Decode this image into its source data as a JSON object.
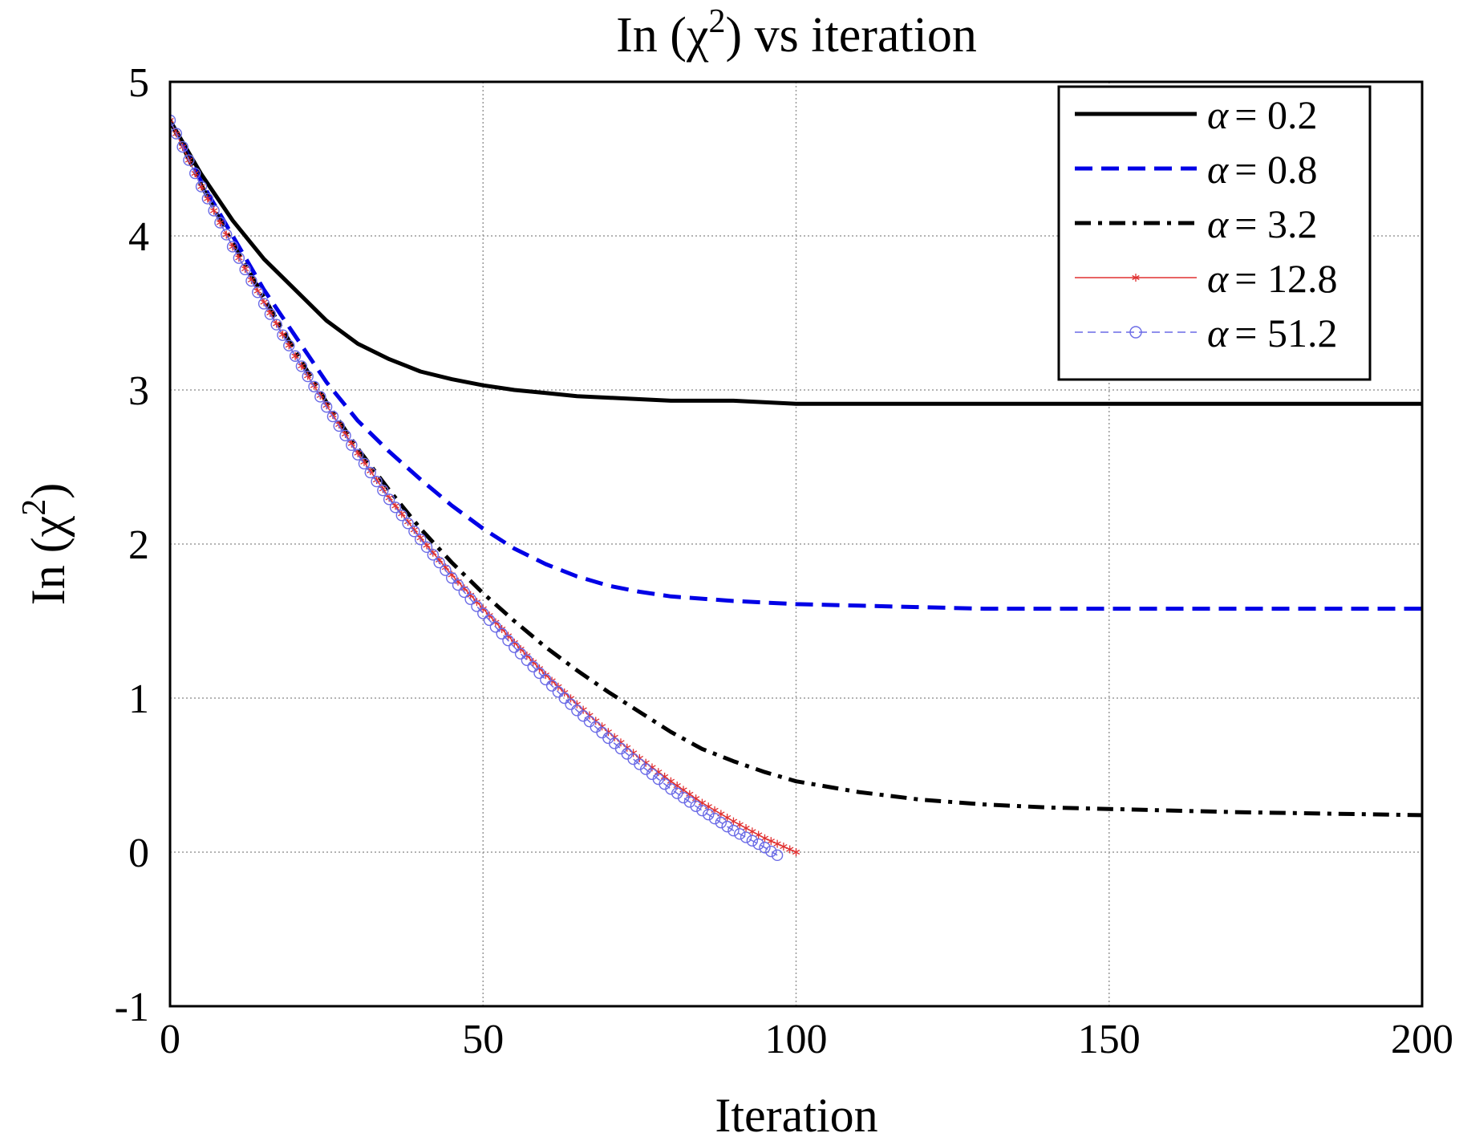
{
  "chart_data": {
    "type": "line",
    "title": "In (χ²) vs iteration",
    "title_parts": {
      "main": "In (χ",
      "sup": "2",
      "tail": ") vs iteration"
    },
    "xlabel": "Iteration",
    "ylabel": "In (χ²)",
    "ylabel_parts": {
      "main": "In (χ",
      "sup": "2",
      "tail": ")"
    },
    "xlim": [
      0,
      200
    ],
    "ylim": [
      -1,
      5
    ],
    "xticks": [
      0,
      50,
      100,
      150,
      200
    ],
    "xtick_labels": [
      "0",
      "50",
      "100",
      "150",
      "200"
    ],
    "yticks": [
      -1,
      0,
      1,
      2,
      3,
      4,
      5
    ],
    "ytick_labels": [
      "-1",
      "0",
      "1",
      "2",
      "3",
      "4",
      "5"
    ],
    "grid": true,
    "legend_position": "top-right",
    "series": [
      {
        "name": "α = 0.2",
        "symbol": "α",
        "value": "= 0.2",
        "color": "#000000",
        "style": "solid",
        "marker": "none",
        "points": [
          [
            0,
            4.75
          ],
          [
            5,
            4.4
          ],
          [
            10,
            4.1
          ],
          [
            15,
            3.85
          ],
          [
            20,
            3.65
          ],
          [
            25,
            3.45
          ],
          [
            30,
            3.3
          ],
          [
            35,
            3.2
          ],
          [
            40,
            3.12
          ],
          [
            45,
            3.07
          ],
          [
            50,
            3.03
          ],
          [
            55,
            3.0
          ],
          [
            60,
            2.98
          ],
          [
            65,
            2.96
          ],
          [
            70,
            2.95
          ],
          [
            75,
            2.94
          ],
          [
            80,
            2.93
          ],
          [
            90,
            2.93
          ],
          [
            100,
            2.91
          ],
          [
            120,
            2.91
          ],
          [
            150,
            2.91
          ],
          [
            200,
            2.91
          ]
        ]
      },
      {
        "name": "α = 0.8",
        "symbol": "α",
        "value": "= 0.8",
        "color": "#0000e6",
        "style": "dashed",
        "marker": "none",
        "points": [
          [
            0,
            4.75
          ],
          [
            5,
            4.35
          ],
          [
            10,
            4.0
          ],
          [
            15,
            3.65
          ],
          [
            20,
            3.35
          ],
          [
            25,
            3.05
          ],
          [
            30,
            2.8
          ],
          [
            35,
            2.6
          ],
          [
            40,
            2.42
          ],
          [
            45,
            2.25
          ],
          [
            50,
            2.1
          ],
          [
            55,
            1.97
          ],
          [
            60,
            1.87
          ],
          [
            65,
            1.79
          ],
          [
            70,
            1.73
          ],
          [
            75,
            1.69
          ],
          [
            80,
            1.66
          ],
          [
            90,
            1.63
          ],
          [
            100,
            1.61
          ],
          [
            110,
            1.6
          ],
          [
            130,
            1.58
          ],
          [
            150,
            1.58
          ],
          [
            200,
            1.58
          ]
        ]
      },
      {
        "name": "α = 3.2",
        "symbol": "α",
        "value": "= 3.2",
        "color": "#000000",
        "style": "dashdot",
        "marker": "none",
        "points": [
          [
            0,
            4.75
          ],
          [
            5,
            4.33
          ],
          [
            10,
            3.95
          ],
          [
            15,
            3.6
          ],
          [
            20,
            3.25
          ],
          [
            25,
            2.92
          ],
          [
            30,
            2.62
          ],
          [
            35,
            2.35
          ],
          [
            40,
            2.1
          ],
          [
            45,
            1.88
          ],
          [
            50,
            1.68
          ],
          [
            55,
            1.5
          ],
          [
            60,
            1.33
          ],
          [
            65,
            1.18
          ],
          [
            70,
            1.04
          ],
          [
            75,
            0.91
          ],
          [
            80,
            0.78
          ],
          [
            85,
            0.67
          ],
          [
            90,
            0.59
          ],
          [
            95,
            0.52
          ],
          [
            100,
            0.46
          ],
          [
            110,
            0.39
          ],
          [
            120,
            0.34
          ],
          [
            130,
            0.31
          ],
          [
            140,
            0.29
          ],
          [
            150,
            0.28
          ],
          [
            170,
            0.26
          ],
          [
            185,
            0.25
          ],
          [
            200,
            0.24
          ]
        ]
      },
      {
        "name": "α = 12.8",
        "symbol": "α",
        "value": "= 12.8",
        "color": "#e03030",
        "style": "solid-thin",
        "marker": "star",
        "points": [
          [
            0,
            4.75
          ],
          [
            5,
            4.32
          ],
          [
            10,
            3.93
          ],
          [
            15,
            3.57
          ],
          [
            20,
            3.22
          ],
          [
            25,
            2.9
          ],
          [
            30,
            2.59
          ],
          [
            35,
            2.3
          ],
          [
            40,
            2.04
          ],
          [
            45,
            1.8
          ],
          [
            50,
            1.58
          ],
          [
            55,
            1.36
          ],
          [
            60,
            1.15
          ],
          [
            65,
            0.96
          ],
          [
            70,
            0.78
          ],
          [
            75,
            0.61
          ],
          [
            80,
            0.46
          ],
          [
            85,
            0.32
          ],
          [
            90,
            0.2
          ],
          [
            95,
            0.09
          ],
          [
            100,
            0.0
          ]
        ]
      },
      {
        "name": "α = 51.2",
        "symbol": "α",
        "value": "= 51.2",
        "color": "#6a6ae6",
        "style": "dashed-thin",
        "marker": "circle",
        "points": [
          [
            0,
            4.75
          ],
          [
            5,
            4.32
          ],
          [
            10,
            3.93
          ],
          [
            15,
            3.56
          ],
          [
            20,
            3.22
          ],
          [
            25,
            2.89
          ],
          [
            30,
            2.58
          ],
          [
            35,
            2.29
          ],
          [
            40,
            2.03
          ],
          [
            45,
            1.78
          ],
          [
            50,
            1.55
          ],
          [
            55,
            1.33
          ],
          [
            60,
            1.12
          ],
          [
            65,
            0.92
          ],
          [
            70,
            0.74
          ],
          [
            75,
            0.57
          ],
          [
            80,
            0.41
          ],
          [
            85,
            0.27
          ],
          [
            90,
            0.14
          ],
          [
            95,
            0.03
          ],
          [
            97,
            -0.02
          ]
        ]
      }
    ]
  }
}
